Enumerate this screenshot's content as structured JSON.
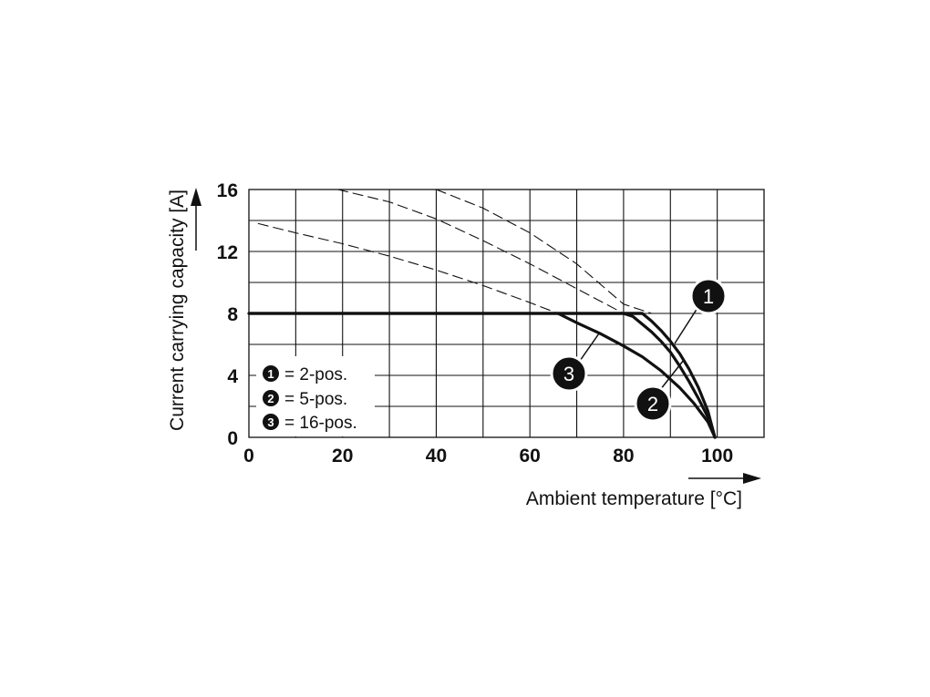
{
  "chart_data": {
    "type": "line",
    "xlabel": "Ambient temperature [°C]",
    "ylabel": "Current carrying capacity [A]",
    "xlim": [
      0,
      110
    ],
    "ylim": [
      0,
      16
    ],
    "x_ticks": [
      0,
      20,
      40,
      60,
      80,
      100
    ],
    "y_ticks": [
      0,
      4,
      8,
      12,
      16
    ],
    "grid": true,
    "legend": {
      "placement": "bottom-left",
      "entries": [
        {
          "id": "1",
          "label": "= 2-pos."
        },
        {
          "id": "2",
          "label": "= 5-pos."
        },
        {
          "id": "3",
          "label": "= 16-pos."
        }
      ]
    },
    "series": [
      {
        "id": "1",
        "style": "solid",
        "x": [
          0,
          84,
          86,
          88,
          90,
          92,
          94,
          96,
          98,
          99.5
        ],
        "y": [
          8,
          8,
          7.5,
          6.9,
          6.2,
          5.4,
          4.4,
          3.2,
          1.7,
          0
        ]
      },
      {
        "id": "2",
        "style": "solid",
        "x": [
          80,
          82,
          84,
          86,
          88,
          90,
          92,
          94,
          96,
          98,
          99.5
        ],
        "y": [
          8,
          7.8,
          7.3,
          6.8,
          6.2,
          5.5,
          4.6,
          3.6,
          2.5,
          1.3,
          0
        ]
      },
      {
        "id": "3",
        "style": "solid",
        "x": [
          66,
          70,
          75,
          80,
          84,
          88,
          92,
          95,
          98,
          99.5
        ],
        "y": [
          8,
          7.4,
          6.7,
          5.9,
          5.2,
          4.3,
          3.2,
          2.2,
          1.0,
          0
        ]
      },
      {
        "id": "1-extrapolated",
        "style": "dashed",
        "x": [
          40,
          50,
          60,
          70,
          80,
          86
        ],
        "y": [
          16,
          14.8,
          13.2,
          11.2,
          8.6,
          8
        ]
      },
      {
        "id": "2-extrapolated",
        "style": "dashed",
        "x": [
          19,
          30,
          40,
          50,
          60,
          70,
          80
        ],
        "y": [
          16,
          15.2,
          14.1,
          12.7,
          11.2,
          9.6,
          8
        ]
      },
      {
        "id": "3-extrapolated",
        "style": "dashed",
        "x": [
          2,
          10,
          20,
          30,
          40,
          50,
          60,
          66
        ],
        "y": [
          13.8,
          13.2,
          12.5,
          11.7,
          10.8,
          9.8,
          8.7,
          8
        ]
      }
    ],
    "annotations": [
      {
        "text": "1",
        "target_series": "1"
      },
      {
        "text": "2",
        "target_series": "2"
      },
      {
        "text": "3",
        "target_series": "3"
      }
    ]
  }
}
